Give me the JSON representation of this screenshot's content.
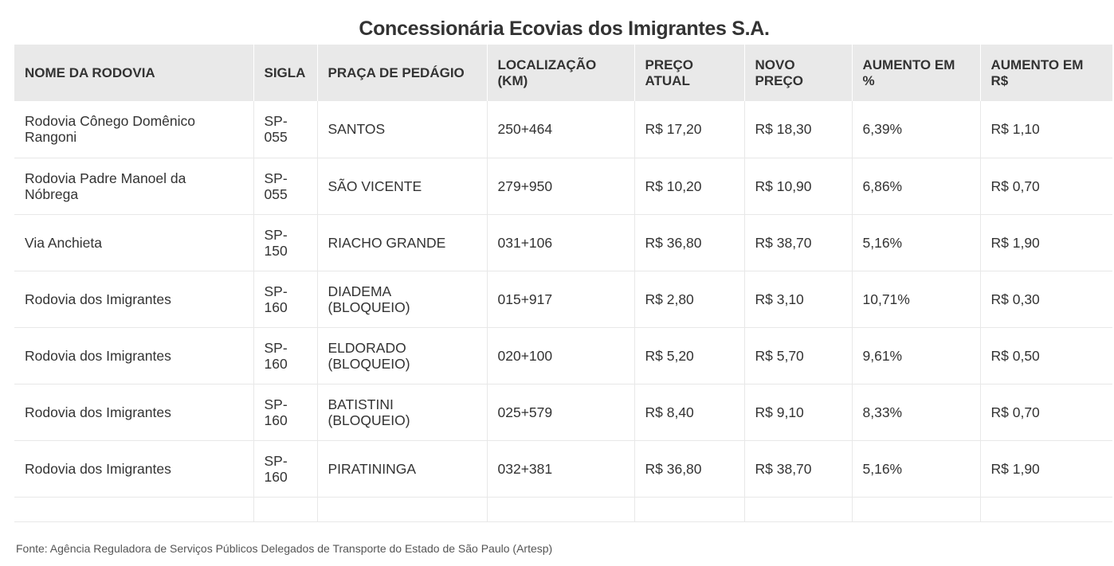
{
  "title": "Concessionária Ecovias dos Imigrantes S.A.",
  "table": {
    "headers": [
      "NOME DA RODOVIA",
      "SIGLA",
      "PRAÇA DE PEDÁGIO",
      "LOCALIZAÇÃO (KM)",
      "PREÇO ATUAL",
      "NOVO PREÇO",
      "AUMENTO EM %",
      "AUMENTO EM R$"
    ],
    "rows": [
      [
        "Rodovia Cônego Domênico Rangoni",
        "SP-055",
        "SANTOS",
        "250+464",
        "R$ 17,20",
        "R$ 18,30",
        "6,39%",
        "R$ 1,10"
      ],
      [
        "Rodovia Padre Manoel da Nóbrega",
        "SP-055",
        "SÃO VICENTE",
        "279+950",
        "R$ 10,20",
        "R$ 10,90",
        "6,86%",
        "R$ 0,70"
      ],
      [
        "Via Anchieta",
        "SP-150",
        "RIACHO GRANDE",
        "031+106",
        "R$ 36,80",
        "R$ 38,70",
        "5,16%",
        "R$ 1,90"
      ],
      [
        "Rodovia dos Imigrantes",
        "SP-160",
        "DIADEMA (BLOQUEIO)",
        "015+917",
        "R$ 2,80",
        "R$ 3,10",
        "10,71%",
        "R$ 0,30"
      ],
      [
        "Rodovia dos Imigrantes",
        "SP-160",
        "ELDORADO (BLOQUEIO)",
        "020+100",
        "R$ 5,20",
        "R$ 5,70",
        "9,61%",
        "R$ 0,50"
      ],
      [
        "Rodovia dos Imigrantes",
        "SP-160",
        "BATISTINI (BLOQUEIO)",
        "025+579",
        "R$ 8,40",
        "R$ 9,10",
        "8,33%",
        "R$ 0,70"
      ],
      [
        "Rodovia dos Imigrantes",
        "SP-160",
        "PIRATININGA",
        "032+381",
        "R$ 36,80",
        "R$ 38,70",
        "5,16%",
        "R$ 1,90"
      ],
      [
        "",
        "",
        "",
        "",
        "",
        "",
        "",
        ""
      ]
    ]
  },
  "source": "Fonte: Agência Reguladora de Serviços Públicos Delegados de Transporte do Estado de São Paulo (Artesp)"
}
